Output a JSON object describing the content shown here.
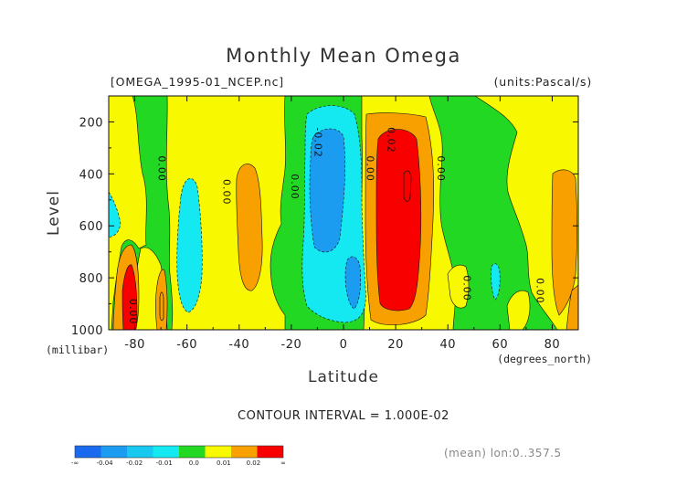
{
  "chart_data": {
    "type": "heatmap",
    "title": "Monthly Mean Omega",
    "file_label": "[OMEGA_1995-01_NCEP.nc]",
    "units_label": "(units:Pascal/s)",
    "xlabel": "Latitude",
    "xunit_label": "(degrees_north)",
    "ylabel": "Level",
    "yunit_label": "(millibar)",
    "xlim": [
      -90,
      90
    ],
    "ylim": [
      1000,
      100
    ],
    "x_ticks": [
      "-80",
      "-60",
      "-40",
      "-20",
      "0",
      "20",
      "40",
      "60",
      "80"
    ],
    "x_tick_values": [
      -80,
      -60,
      -40,
      -20,
      0,
      20,
      40,
      60,
      80
    ],
    "y_ticks": [
      "200",
      "400",
      "600",
      "800",
      "1000"
    ],
    "y_tick_values": [
      200,
      400,
      600,
      800,
      1000
    ],
    "contour_interval_text": "CONTOUR INTERVAL = 1.000E-02",
    "footer_text": "(mean) lon:0..357.5",
    "contour_labels": [
      {
        "text": "0.00",
        "lat": -71,
        "level": 380
      },
      {
        "text": "0.00",
        "lat": -46,
        "level": 470
      },
      {
        "text": "0.00",
        "lat": -20,
        "level": 450
      },
      {
        "text": "-0.02",
        "lat": -11,
        "level": 280
      },
      {
        "text": "0.00",
        "lat": 9,
        "level": 380
      },
      {
        "text": "0.02",
        "lat": 17,
        "level": 270
      },
      {
        "text": "0.00",
        "lat": 36,
        "level": 380
      },
      {
        "text": "0.00",
        "lat": 46,
        "level": 840
      },
      {
        "text": "0.00",
        "lat": 74,
        "level": 850
      },
      {
        "text": "0.00",
        "lat": -82,
        "level": 930
      }
    ],
    "colorbar": {
      "labels": [
        "-∞",
        "-0.04",
        "-0.02",
        "-0.01",
        "0.0",
        "0.01",
        "0.02",
        "∞"
      ],
      "colors": [
        "#1a6af0",
        "#1b9cf0",
        "#19c8f0",
        "#14e8f0",
        "#22d822",
        "#f8f800",
        "#f8a000",
        "#f80000"
      ]
    },
    "fields": [
      {
        "name": "field-green",
        "color": "#22d822",
        "value_range": "-0.01 to 0.00"
      },
      {
        "name": "field-yellow",
        "color": "#f8f800",
        "value_range": "0.00 to 0.01"
      },
      {
        "name": "field-orange",
        "color": "#f8a000",
        "value_range": "0.01 to 0.02"
      },
      {
        "name": "field-red",
        "color": "#f80000",
        "value_range": "> 0.02"
      },
      {
        "name": "field-cyan",
        "color": "#14e8f0",
        "value_range": "-0.02 to -0.01"
      },
      {
        "name": "field-blue",
        "color": "#1b9cf0",
        "value_range": "< -0.02"
      }
    ]
  }
}
